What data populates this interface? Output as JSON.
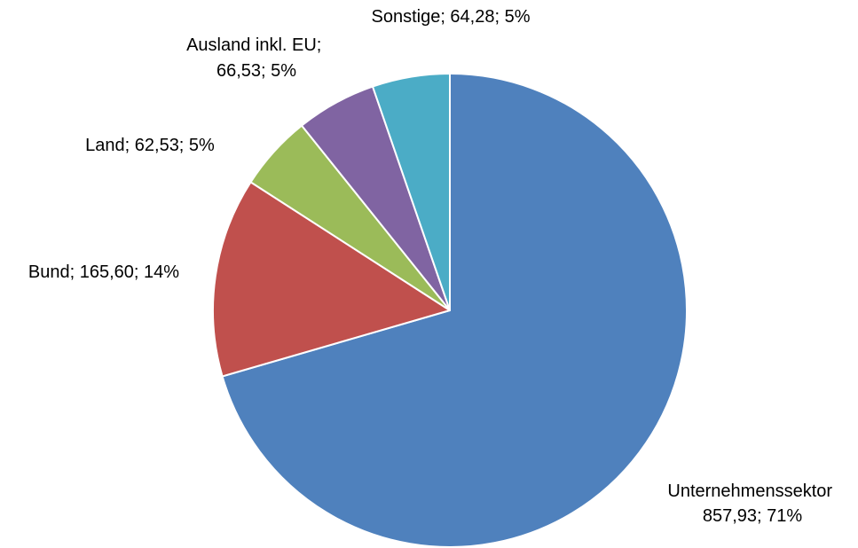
{
  "chart_data": {
    "type": "pie",
    "title": "",
    "slices": [
      {
        "name": "Unternehmenssektor",
        "value": 857.93,
        "percent": "71%",
        "color": "#4F81BD",
        "label_lines": [
          "Unternehmenssektor",
          "857,93; 71%"
        ]
      },
      {
        "name": "Bund",
        "value": 165.6,
        "percent": "14%",
        "color": "#C0504D",
        "label_lines": [
          "Bund; 165,60; 14%"
        ]
      },
      {
        "name": "Land",
        "value": 62.53,
        "percent": "5%",
        "color": "#9BBB59",
        "label_lines": [
          "Land; 62,53; 5%"
        ]
      },
      {
        "name": "Ausland inkl. EU",
        "value": 66.53,
        "percent": "5%",
        "color": "#8064A2",
        "label_lines": [
          "Ausland inkl. EU;",
          "66,53; 5%"
        ]
      },
      {
        "name": "Sonstige",
        "value": 64.28,
        "percent": "5%",
        "color": "#4BACC6",
        "label_lines": [
          "Sonstige; 64,28; 5%"
        ]
      }
    ],
    "start_direction": "12 o'clock",
    "direction": "clockwise",
    "legend": "none",
    "grid": false
  }
}
